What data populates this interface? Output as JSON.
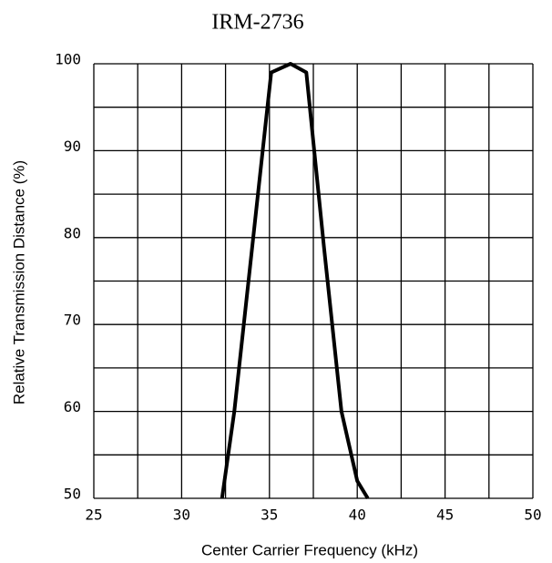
{
  "chart_data": {
    "type": "line",
    "title": "IRM-2736",
    "x_label": "Center Carrier Frequency  (kHz)",
    "y_label": "Relative Transmission Distance (%)",
    "series": [
      {
        "name": "IRM-2736",
        "color": "#000000",
        "x": [
          32.3,
          33.0,
          35.1,
          36.2,
          37.1,
          38.1,
          39.1,
          40.0,
          40.6
        ],
        "values": [
          50,
          60,
          99,
          100,
          99,
          79,
          60,
          52,
          50
        ]
      }
    ],
    "xlim": [
      25,
      50
    ],
    "xticks": [
      25,
      30,
      35,
      40,
      45,
      50
    ],
    "x_grid": [
      27.5,
      32.5,
      37.5,
      42.5,
      47.5
    ],
    "ylim": [
      50,
      100
    ],
    "yticks": [
      50,
      60,
      70,
      80,
      90,
      100
    ],
    "y_grid": [
      55,
      65,
      75,
      85,
      95
    ],
    "grid": true
  }
}
